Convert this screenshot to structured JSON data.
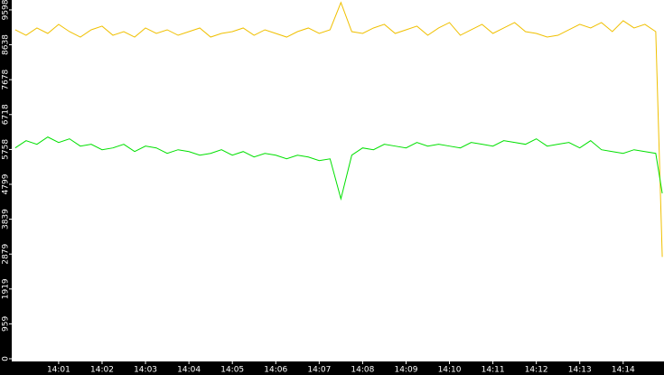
{
  "chart_data": {
    "type": "line",
    "x": [
      840,
      840.25,
      840.5,
      840.75,
      841,
      841.25,
      841.5,
      841.75,
      842,
      842.25,
      842.5,
      842.75,
      843,
      843.25,
      843.5,
      843.75,
      844,
      844.25,
      844.5,
      844.75,
      845,
      845.25,
      845.5,
      845.75,
      846,
      846.25,
      846.5,
      846.75,
      847,
      847.25,
      847.5,
      847.75,
      848,
      848.25,
      848.5,
      848.75,
      849,
      849.25,
      849.5,
      849.75,
      850,
      850.25,
      850.5,
      850.75,
      851,
      851.25,
      851.5,
      851.75,
      852,
      852.25,
      852.5,
      852.75,
      853,
      853.25,
      853.5,
      853.75,
      854,
      854.25,
      854.5,
      854.75,
      854.9
    ],
    "series": [
      {
        "color": "#f0c000",
        "values": [
          9050,
          8900,
          9100,
          8950,
          9200,
          9000,
          8850,
          9050,
          9150,
          8900,
          9000,
          8850,
          9100,
          8950,
          9050,
          8900,
          9000,
          9100,
          8850,
          8950,
          9000,
          9100,
          8900,
          9050,
          8950,
          8850,
          9000,
          9100,
          8950,
          9050,
          9800,
          9000,
          8950,
          9100,
          9200,
          8950,
          9050,
          9150,
          8900,
          9100,
          9250,
          8900,
          9050,
          9200,
          8950,
          9100,
          9250,
          9000,
          8950,
          8850,
          8900,
          9050,
          9200,
          9100,
          9250,
          9000,
          9300,
          9100,
          9200,
          9000,
          2800
        ]
      },
      {
        "color": "#00e000",
        "values": [
          5800,
          6000,
          5900,
          6100,
          5950,
          6050,
          5850,
          5900,
          5750,
          5800,
          5900,
          5700,
          5850,
          5800,
          5650,
          5750,
          5700,
          5600,
          5650,
          5750,
          5600,
          5700,
          5550,
          5650,
          5600,
          5500,
          5600,
          5550,
          5450,
          5500,
          4400,
          5600,
          5800,
          5750,
          5900,
          5850,
          5800,
          5950,
          5850,
          5900,
          5850,
          5800,
          5950,
          5900,
          5850,
          6000,
          5950,
          5900,
          6050,
          5850,
          5900,
          5950,
          5800,
          6000,
          5750,
          5700,
          5650,
          5750,
          5700,
          5650,
          4550
        ]
      }
    ],
    "xlim": [
      839.92,
      854.94
    ],
    "xticks": [
      {
        "value": 841,
        "label": "14:01"
      },
      {
        "value": 842,
        "label": "14:02"
      },
      {
        "value": 843,
        "label": "14:03"
      },
      {
        "value": 844,
        "label": "14:04"
      },
      {
        "value": 845,
        "label": "14:05"
      },
      {
        "value": 846,
        "label": "14:06"
      },
      {
        "value": 847,
        "label": "14:07"
      },
      {
        "value": 848,
        "label": "14:08"
      },
      {
        "value": 849,
        "label": "14:09"
      },
      {
        "value": 850,
        "label": "14:10"
      },
      {
        "value": 851,
        "label": "14:11"
      },
      {
        "value": 852,
        "label": "14:12"
      },
      {
        "value": 853,
        "label": "14:13"
      },
      {
        "value": 854,
        "label": "14:14"
      }
    ],
    "ylim": [
      -75,
      9870
    ],
    "yticks": [
      0,
      959,
      1919,
      2879,
      3839,
      4799,
      5758,
      6718,
      7678,
      8638,
      9598
    ]
  }
}
